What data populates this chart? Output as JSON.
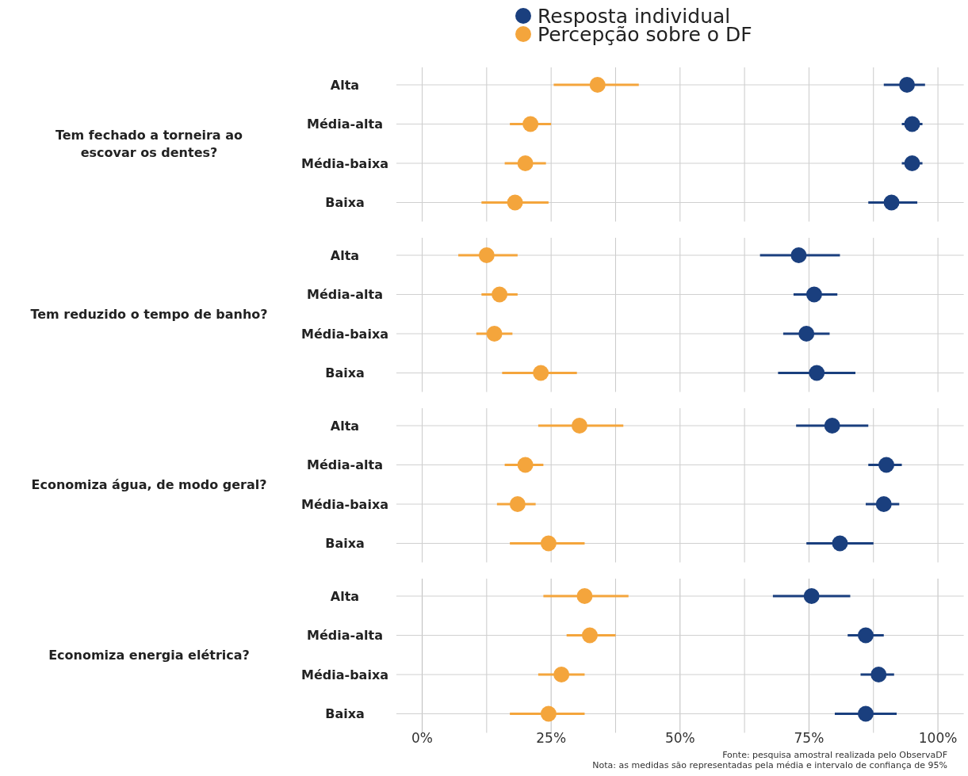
{
  "chart_data": [
    {
      "type": "scatter",
      "orientation": "horizontal",
      "title": "Tem fechado a torneira ao escovar os dentes?",
      "categories": [
        "Alta",
        "Média-alta",
        "Média-baixa",
        "Baixa"
      ],
      "marker": "circle",
      "grid": true,
      "legend": "top",
      "tick_labels": "y",
      "xlim": [
        -5,
        105
      ],
      "xticks": [
        {
          "value": 0,
          "label": null
        },
        {
          "value": 12.5,
          "label": null
        },
        {
          "value": 25,
          "label": null
        },
        {
          "value": 37.5,
          "label": null
        },
        {
          "value": 50,
          "label": null
        },
        {
          "value": 62.5,
          "label": null
        },
        {
          "value": 75,
          "label": null
        },
        {
          "value": 87.5,
          "label": null
        },
        {
          "value": 100,
          "label": null
        }
      ],
      "series": [
        {
          "name": "Resposta individual",
          "color": "#1a3f7e",
          "values": [
            94,
            95,
            95,
            91
          ],
          "errors": [
            [
              89.5,
              97.5
            ],
            [
              93,
              97
            ],
            [
              93,
              97
            ],
            [
              86.5,
              96
            ]
          ]
        },
        {
          "name": "Percepção sobre o DF",
          "color": "#f4a53c",
          "values": [
            34,
            21,
            20,
            18
          ],
          "errors": [
            [
              25.5,
              42
            ],
            [
              17,
              25
            ],
            [
              16,
              24
            ],
            [
              11.5,
              24.5
            ]
          ]
        }
      ]
    },
    {
      "type": "scatter",
      "orientation": "horizontal",
      "title": "Tem reduzido o tempo de banho?",
      "categories": [
        "Alta",
        "Média-alta",
        "Média-baixa",
        "Baixa"
      ],
      "marker": "circle",
      "grid": true,
      "tick_labels": "y",
      "xlim": [
        -5,
        105
      ],
      "xticks": [
        {
          "value": 0,
          "label": null
        },
        {
          "value": 12.5,
          "label": null
        },
        {
          "value": 25,
          "label": null
        },
        {
          "value": 37.5,
          "label": null
        },
        {
          "value": 50,
          "label": null
        },
        {
          "value": 62.5,
          "label": null
        },
        {
          "value": 75,
          "label": null
        },
        {
          "value": 87.5,
          "label": null
        },
        {
          "value": 100,
          "label": null
        }
      ],
      "series": [
        {
          "color": "#1a3f7e",
          "values": [
            73,
            76,
            74.5,
            76.5
          ],
          "errors": [
            [
              65.5,
              81
            ],
            [
              72,
              80.5
            ],
            [
              70,
              79
            ],
            [
              69,
              84
            ]
          ]
        },
        {
          "color": "#f4a53c",
          "values": [
            12.5,
            15,
            14,
            23
          ],
          "errors": [
            [
              7,
              18.5
            ],
            [
              11.5,
              18.5
            ],
            [
              10.5,
              17.5
            ],
            [
              15.5,
              30
            ]
          ]
        }
      ]
    },
    {
      "type": "scatter",
      "orientation": "horizontal",
      "title": "Economiza água, de modo geral?",
      "categories": [
        "Alta",
        "Média-alta",
        "Média-baixa",
        "Baixa"
      ],
      "marker": "circle",
      "grid": true,
      "tick_labels": "y",
      "xlim": [
        -5,
        105
      ],
      "xticks": [
        {
          "value": 0,
          "label": null
        },
        {
          "value": 12.5,
          "label": null
        },
        {
          "value": 25,
          "label": null
        },
        {
          "value": 37.5,
          "label": null
        },
        {
          "value": 50,
          "label": null
        },
        {
          "value": 62.5,
          "label": null
        },
        {
          "value": 75,
          "label": null
        },
        {
          "value": 87.5,
          "label": null
        },
        {
          "value": 100,
          "label": null
        }
      ],
      "series": [
        {
          "color": "#1a3f7e",
          "values": [
            79.5,
            90,
            89.5,
            81
          ],
          "errors": [
            [
              72.5,
              86.5
            ],
            [
              86.5,
              93
            ],
            [
              86,
              92.5
            ],
            [
              74.5,
              87.5
            ]
          ]
        },
        {
          "color": "#f4a53c",
          "values": [
            30.5,
            20,
            18.5,
            24.5
          ],
          "errors": [
            [
              22.5,
              39
            ],
            [
              16,
              23.5
            ],
            [
              14.5,
              22
            ],
            [
              17,
              31.5
            ]
          ]
        }
      ]
    },
    {
      "type": "scatter",
      "orientation": "horizontal",
      "title": "Economiza energia elétrica?",
      "categories": [
        "Alta",
        "Média-alta",
        "Média-baixa",
        "Baixa"
      ],
      "marker": "circle",
      "grid": true,
      "xlim": [
        -5,
        105
      ],
      "xticks": [
        {
          "value": 0,
          "label": "0%"
        },
        {
          "value": 12.5,
          "label": null
        },
        {
          "value": 25,
          "label": "25%"
        },
        {
          "value": 37.5,
          "label": null
        },
        {
          "value": 50,
          "label": "50%"
        },
        {
          "value": 62.5,
          "label": null
        },
        {
          "value": 75,
          "label": "75%"
        },
        {
          "value": 87.5,
          "label": null
        },
        {
          "value": 100,
          "label": "100%"
        }
      ],
      "annotations": [
        "Fonte: pesquisa amostral realizada pelo ObservaDF",
        "Nota: as medidas são representadas pela média e intervalo de confiança de 95%"
      ],
      "series": [
        {
          "color": "#1a3f7e",
          "values": [
            75.5,
            86,
            88.5,
            86
          ],
          "errors": [
            [
              68,
              83
            ],
            [
              82.5,
              89.5
            ],
            [
              85,
              91.5
            ],
            [
              80,
              92
            ]
          ]
        },
        {
          "color": "#f4a53c",
          "values": [
            31.5,
            32.5,
            27,
            24.5
          ],
          "errors": [
            [
              23.5,
              40
            ],
            [
              28,
              37.5
            ],
            [
              22.5,
              31.5
            ],
            [
              17,
              31.5
            ]
          ]
        }
      ]
    }
  ]
}
